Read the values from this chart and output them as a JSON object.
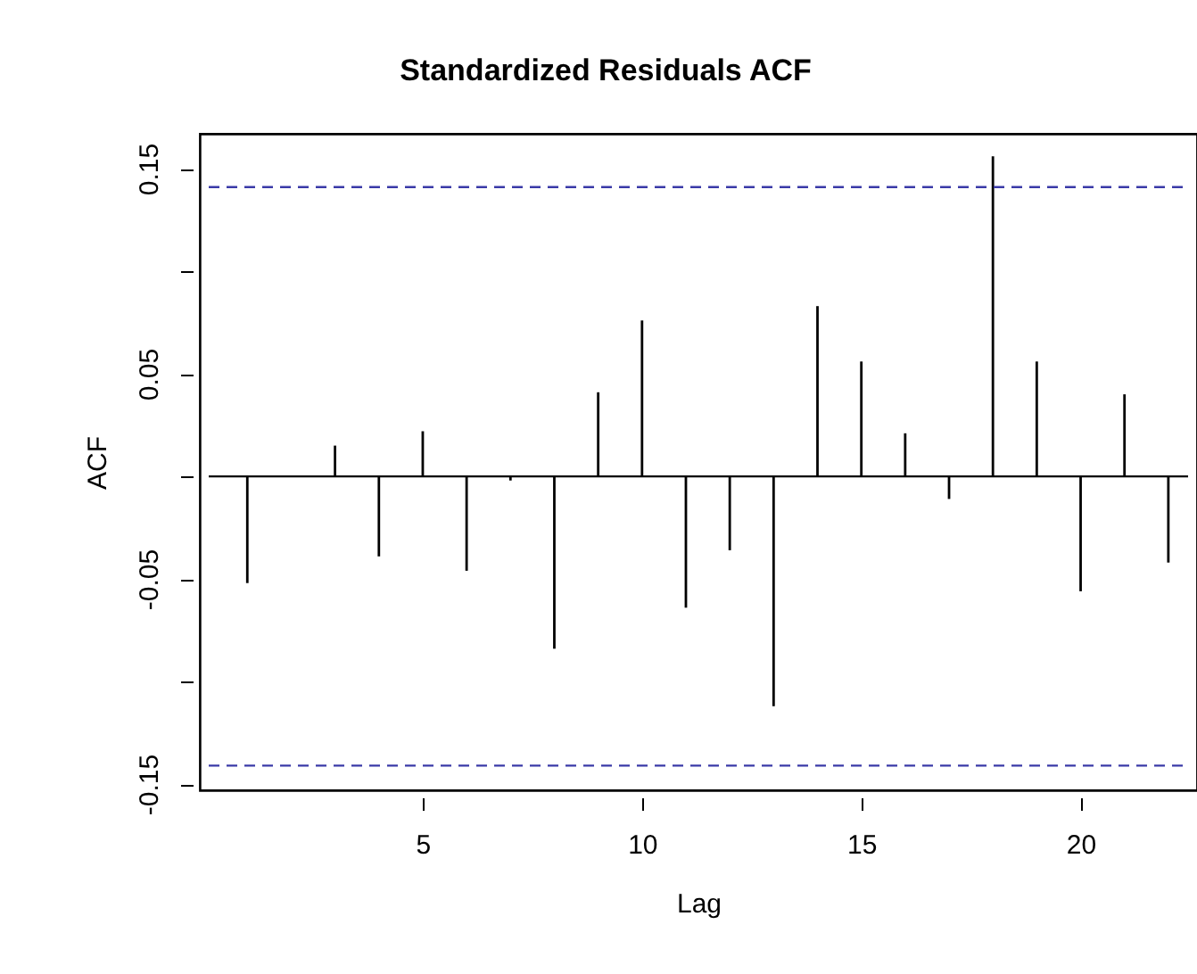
{
  "chart_data": {
    "type": "bar",
    "title": "Standardized Residuals ACF",
    "xlabel": "Lag",
    "ylabel": "ACF",
    "x": [
      1,
      2,
      3,
      4,
      5,
      6,
      7,
      8,
      9,
      10,
      11,
      12,
      13,
      14,
      15,
      16,
      17,
      18,
      19,
      20,
      21,
      22
    ],
    "values": [
      -0.052,
      0.0,
      0.015,
      -0.039,
      0.022,
      -0.046,
      -0.002,
      -0.084,
      0.041,
      0.076,
      -0.064,
      -0.036,
      -0.112,
      0.083,
      0.056,
      0.021,
      -0.011,
      0.156,
      0.056,
      -0.056,
      0.04,
      -0.042
    ],
    "color": "#000000",
    "xlim": [
      0.12,
      22.45
    ],
    "xticks": [
      5,
      10,
      15,
      20
    ],
    "ylim": [
      -0.153,
      0.167
    ],
    "yticks": [
      {
        "value": -0.15,
        "label": "-0.15"
      },
      {
        "value": -0.1,
        "label": null
      },
      {
        "value": -0.05,
        "label": "-0.05"
      },
      {
        "value": 0,
        "label": null
      },
      {
        "value": 0.05,
        "label": "0.05"
      },
      {
        "value": 0.1,
        "label": null
      },
      {
        "value": 0.15,
        "label": "0.15"
      }
    ],
    "ref_lines": [
      {
        "axis": "y",
        "value": 0,
        "color": "#000000",
        "line_style": "solid"
      },
      {
        "axis": "y",
        "value": 0.141,
        "color": "#3a3aa8",
        "line_style": "dashed"
      },
      {
        "axis": "y",
        "value": -0.141,
        "color": "#3a3aa8",
        "line_style": "dashed"
      }
    ],
    "grid": false
  }
}
